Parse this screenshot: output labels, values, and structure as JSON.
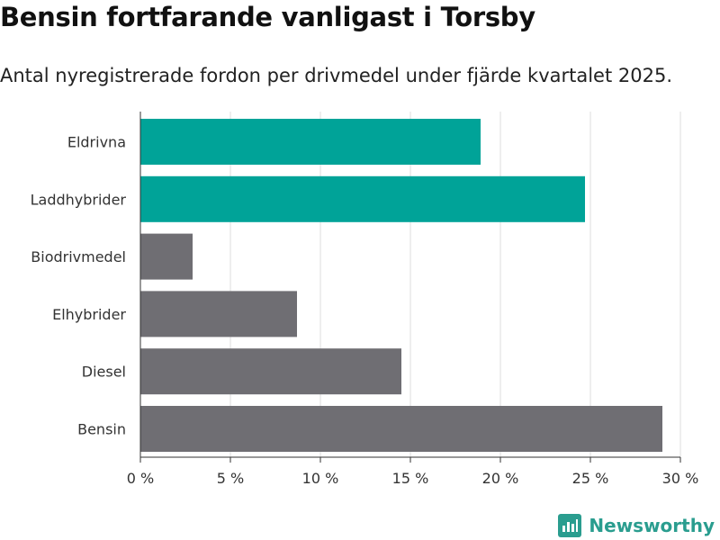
{
  "header": {
    "title": "Bensin fortfarande vanligast i Torsby",
    "subtitle": "Antal nyregistrerade fordon per drivmedel under fjärde kvartalet 2025."
  },
  "brand": {
    "name": "Newsworthy",
    "icon": "newsworthy-logo-icon",
    "color": "#2a9d8f"
  },
  "chart_data": {
    "type": "bar",
    "orientation": "horizontal",
    "categories": [
      "Eldrivna",
      "Laddhybrider",
      "Biodrivmedel",
      "Elhybrider",
      "Diesel",
      "Bensin"
    ],
    "values": [
      18.9,
      24.7,
      2.9,
      8.7,
      14.5,
      29.0
    ],
    "colors": [
      "#00a398",
      "#00a398",
      "#6f6e73",
      "#6f6e73",
      "#6f6e73",
      "#6f6e73"
    ],
    "xlim": [
      0,
      30
    ],
    "xticks": [
      0,
      5,
      10,
      15,
      20,
      25,
      30
    ],
    "xtick_labels": [
      "0 %",
      "5 %",
      "10 %",
      "15 %",
      "20 %",
      "25 %",
      "30 %"
    ],
    "grid": true,
    "xlabel": "",
    "ylabel": ""
  }
}
